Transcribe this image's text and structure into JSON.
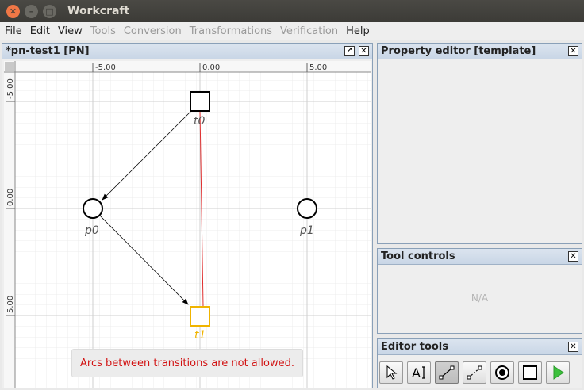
{
  "window": {
    "title": "Workcraft"
  },
  "menu": [
    {
      "label": "File",
      "enabled": true
    },
    {
      "label": "Edit",
      "enabled": true
    },
    {
      "label": "View",
      "enabled": true
    },
    {
      "label": "Tools",
      "enabled": false
    },
    {
      "label": "Conversion",
      "enabled": false
    },
    {
      "label": "Transformations",
      "enabled": false
    },
    {
      "label": "Verification",
      "enabled": false
    },
    {
      "label": "Help",
      "enabled": true
    }
  ],
  "editor": {
    "tab_title": "*pn-test1 [PN]",
    "ruler_x": [
      "-5.00",
      "0.00",
      "5.00"
    ],
    "ruler_y": [
      "-5.00",
      "0.00",
      "5.00"
    ],
    "nodes": {
      "t0": "t0",
      "t1": "t1",
      "p0": "p0",
      "p1": "p1"
    },
    "colors": {
      "selected": "#f0b400",
      "invalid_arc": "#e03030",
      "node_stroke": "#000000"
    },
    "message": "Arcs between transitions are not allowed."
  },
  "property_editor": {
    "title": "Property editor [template]"
  },
  "tool_controls": {
    "title": "Tool controls",
    "placeholder": "N/A"
  },
  "editor_tools": {
    "title": "Editor tools",
    "tools": [
      {
        "name": "select-tool",
        "icon": "cursor-icon"
      },
      {
        "name": "text-tool",
        "icon": "text-cursor-icon"
      },
      {
        "name": "connect-tool",
        "icon": "connect-icon"
      },
      {
        "name": "readarc-tool",
        "icon": "dashed-connect-icon"
      },
      {
        "name": "place-tool",
        "icon": "place-icon"
      },
      {
        "name": "transition-tool",
        "icon": "transition-icon"
      },
      {
        "name": "simulation-tool",
        "icon": "play-icon"
      }
    ]
  }
}
